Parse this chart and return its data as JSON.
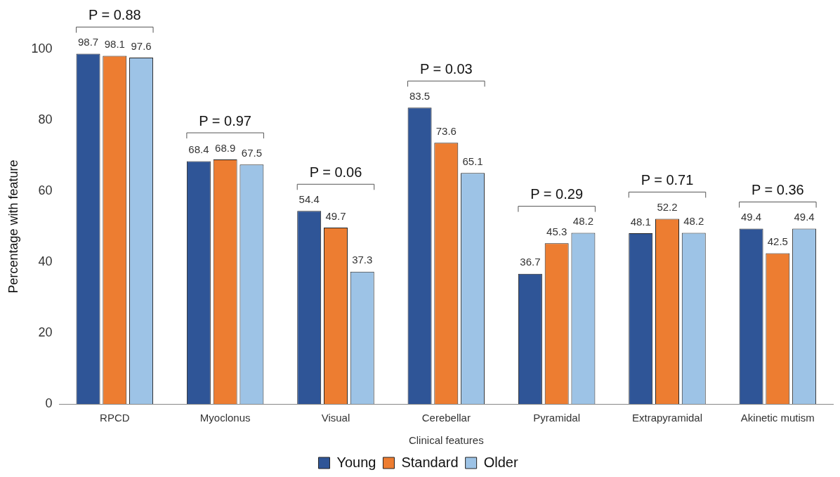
{
  "chart_data": {
    "type": "bar",
    "xlabel": "Clinical features",
    "ylabel": "Percentage with feature",
    "categories": [
      "RPCD",
      "Myoclonus",
      "Visual",
      "Cerebellar",
      "Pyramidal",
      "Extrapyramidal",
      "Akinetic mutism"
    ],
    "series": [
      {
        "name": "Young",
        "color": "#2f5597",
        "values": [
          98.7,
          68.4,
          54.4,
          83.5,
          36.7,
          48.1,
          49.4
        ]
      },
      {
        "name": "Standard",
        "color": "#ed7d31",
        "values": [
          98.1,
          68.9,
          49.7,
          73.6,
          45.3,
          52.2,
          42.5
        ]
      },
      {
        "name": "Older",
        "color": "#9dc3e6",
        "values": [
          97.6,
          67.5,
          37.3,
          65.1,
          48.2,
          48.2,
          49.4
        ]
      }
    ],
    "ylim": [
      0,
      100
    ],
    "yticks": [
      0,
      20,
      40,
      60,
      80,
      100
    ],
    "grid": false,
    "legend": "bottom",
    "data_labels": true,
    "annotations": [
      "P = 0.88",
      "P = 0.97",
      "P = 0.06",
      "P = 0.03",
      "P = 0.29",
      "P = 0.71",
      "P = 0.36"
    ]
  }
}
